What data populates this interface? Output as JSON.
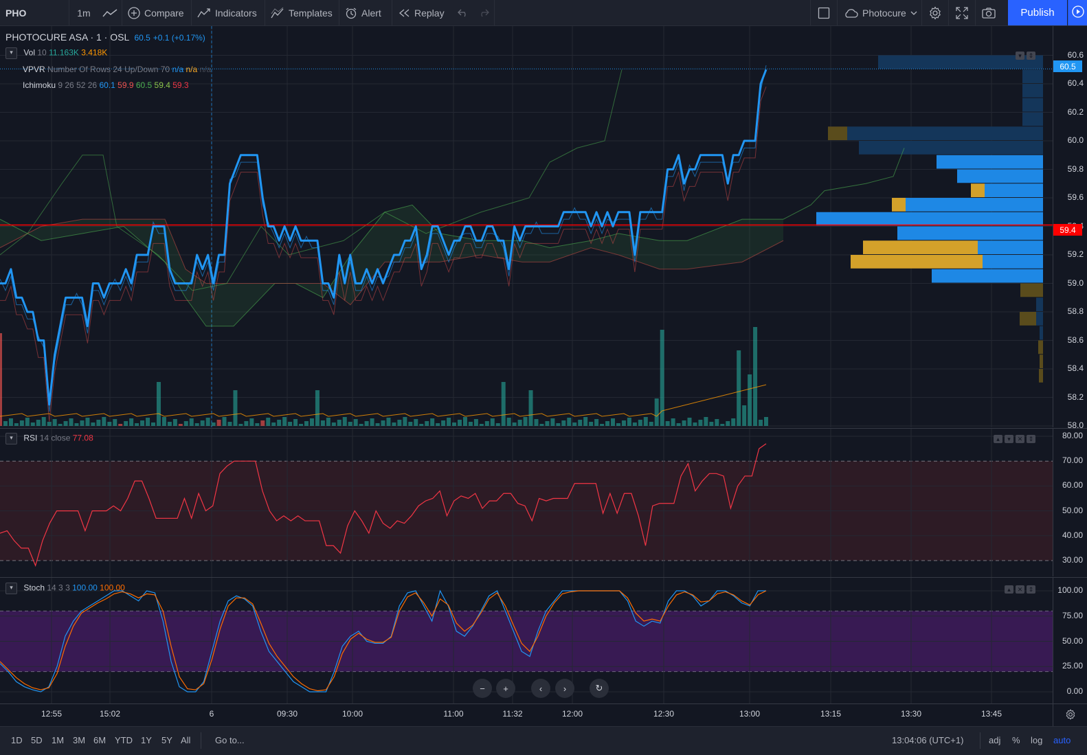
{
  "toolbar": {
    "symbol": "PHO",
    "interval": "1m",
    "compare": "Compare",
    "indicators": "Indicators",
    "templates": "Templates",
    "alert": "Alert",
    "replay": "Replay",
    "layout_name": "Photocure",
    "publish": "Publish"
  },
  "main_legend": {
    "name": "PHOTOCURE ASA · 1 · OSL",
    "last": "60.5",
    "change": "+0.1 (+0.17%)"
  },
  "vol_legend": {
    "name": "Vol",
    "params": "10",
    "v1": "11.163K",
    "v2": "3.418K"
  },
  "vpvr_legend": {
    "name": "VPVR",
    "params": "Number Of Rows 24 Up/Down 70",
    "v1": "n/a",
    "v2": "n/a",
    "v3": "n/a"
  },
  "ichimoku_legend": {
    "name": "Ichimoku",
    "params": "9 26 52 26",
    "v1": "60.1",
    "v2": "59.9",
    "v3": "60.5",
    "v4": "59.4",
    "v5": "59.3"
  },
  "rsi_legend": {
    "name": "RSI",
    "params": "14 close",
    "value": "77.08"
  },
  "stoch_legend": {
    "name": "Stoch",
    "params": "14 3 3",
    "k": "100.00",
    "d": "100.00"
  },
  "price_axis": [
    "60.6",
    "60.4",
    "60.2",
    "60.0",
    "59.8",
    "59.6",
    "59.4",
    "59.2",
    "59.0",
    "58.8",
    "58.6",
    "58.4",
    "58.2",
    "58.0"
  ],
  "price_tags": {
    "last": "60.5",
    "line": "59.4"
  },
  "rsi_axis": [
    "80.00",
    "70.00",
    "60.00",
    "50.00",
    "40.00",
    "30.00"
  ],
  "stoch_axis": [
    "100.00",
    "75.00",
    "50.00",
    "25.00",
    "0.00"
  ],
  "time_axis": [
    "12:55",
    "15:02",
    "6",
    "09:30",
    "10:00",
    "11:00",
    "11:32",
    "12:00",
    "12:30",
    "13:00",
    "13:15",
    "13:30",
    "13:45"
  ],
  "bottom": {
    "ranges": [
      "1D",
      "5D",
      "1M",
      "3M",
      "6M",
      "YTD",
      "1Y",
      "5Y",
      "All"
    ],
    "goto": "Go to...",
    "clock": "13:04:06 (UTC+1)",
    "adj": "adj",
    "percent": "%",
    "log": "log",
    "auto": "auto"
  },
  "colors": {
    "price_line": "#2196f3",
    "red_line": "#ff0000",
    "rsi": "#f23645",
    "stoch_k": "#2196f3",
    "stoch_d": "#ff6d00",
    "vol_up": "#26a69a",
    "vol_down": "#ef5350",
    "vpvr_up": "#1e88e5",
    "vpvr_down": "#f9a825",
    "accent": "#2962ff"
  },
  "chart_data": {
    "type": "line",
    "price_series": [
      59.0,
      59.0,
      59.1,
      58.9,
      58.9,
      58.8,
      58.8,
      58.6,
      58.6,
      58.15,
      58.5,
      58.7,
      58.9,
      58.9,
      58.9,
      58.9,
      58.7,
      59.0,
      59.0,
      58.9,
      59.0,
      59.0,
      59.0,
      59.1,
      59.0,
      59.2,
      59.2,
      59.2,
      59.4,
      59.4,
      59.4,
      59.1,
      59.0,
      59.0,
      59.0,
      59.0,
      59.2,
      59.1,
      59.2,
      59.0,
      59.2,
      59.2,
      59.7,
      59.8,
      59.9,
      59.9,
      59.9,
      59.9,
      59.6,
      59.4,
      59.4,
      59.3,
      59.4,
      59.3,
      59.4,
      59.3,
      59.3,
      59.3,
      59.3,
      59.0,
      59.0,
      58.9,
      59.2,
      59.0,
      59.2,
      59.0,
      59.0,
      59.1,
      59.0,
      59.1,
      59.0,
      59.1,
      59.2,
      59.2,
      59.3,
      59.3,
      59.4,
      59.1,
      59.2,
      59.4,
      59.4,
      59.3,
      59.2,
      59.3,
      59.3,
      59.4,
      59.4,
      59.3,
      59.3,
      59.4,
      59.4,
      59.3,
      59.3,
      59.1,
      59.4,
      59.3,
      59.4,
      59.4,
      59.4,
      59.4,
      59.4,
      59.4,
      59.4,
      59.5,
      59.5,
      59.5,
      59.5,
      59.5,
      59.4,
      59.5,
      59.4,
      59.5,
      59.4,
      59.5,
      59.5,
      59.5,
      59.2,
      59.5,
      59.5,
      59.5,
      59.5,
      59.5,
      59.8,
      59.8,
      59.9,
      59.7,
      59.8,
      59.8,
      59.9,
      59.9,
      59.9,
      59.9,
      59.9,
      59.7,
      59.9,
      59.9,
      60.0,
      60.0,
      60.0,
      60.4,
      60.5
    ],
    "rsi_series": [
      41,
      42,
      38,
      35,
      35,
      28,
      38,
      45,
      50,
      50,
      50,
      50,
      42,
      50,
      50,
      50,
      52,
      50,
      55,
      62,
      62,
      55,
      47,
      47,
      47,
      47,
      55,
      47,
      57,
      50,
      52,
      65,
      68,
      70,
      70,
      70,
      70,
      58,
      50,
      46,
      48,
      46,
      48,
      46,
      46,
      46,
      36,
      36,
      33,
      44,
      50,
      46,
      41,
      50,
      45,
      43,
      46,
      45,
      48,
      52,
      54,
      55,
      58,
      48,
      54,
      56,
      55,
      57,
      51,
      54,
      54,
      57,
      57,
      53,
      52,
      46,
      55,
      54,
      55,
      55,
      55,
      61,
      61,
      61,
      61,
      49,
      57,
      49,
      57,
      57,
      48,
      36,
      52,
      53,
      53,
      53,
      64,
      69,
      58,
      62,
      65,
      65,
      64,
      51,
      60,
      64,
      64,
      75,
      77
    ],
    "stoch_k": [
      28,
      20,
      10,
      5,
      2,
      0,
      5,
      25,
      55,
      70,
      80,
      85,
      90,
      95,
      100,
      100,
      95,
      90,
      100,
      98,
      70,
      30,
      5,
      0,
      0,
      10,
      40,
      70,
      90,
      95,
      92,
      85,
      60,
      40,
      30,
      20,
      10,
      5,
      0,
      0,
      0,
      20,
      45,
      55,
      60,
      50,
      48,
      48,
      55,
      85,
      98,
      100,
      85,
      70,
      100,
      85,
      60,
      55,
      65,
      80,
      95,
      100,
      80,
      60,
      40,
      35,
      60,
      80,
      90,
      100,
      100,
      100,
      100,
      100,
      100,
      100,
      100,
      90,
      70,
      65,
      70,
      68,
      90,
      100,
      100,
      95,
      85,
      90,
      100,
      100,
      95,
      88,
      85,
      100,
      100
    ],
    "stoch_d": [
      30,
      22,
      14,
      8,
      4,
      2,
      4,
      18,
      45,
      65,
      78,
      83,
      88,
      92,
      97,
      99,
      97,
      93,
      97,
      96,
      80,
      45,
      15,
      3,
      2,
      8,
      32,
      62,
      85,
      93,
      93,
      87,
      68,
      48,
      35,
      25,
      15,
      8,
      3,
      1,
      2,
      15,
      38,
      52,
      58,
      52,
      49,
      49,
      54,
      80,
      94,
      98,
      88,
      75,
      92,
      86,
      68,
      60,
      66,
      78,
      92,
      98,
      85,
      66,
      48,
      40,
      55,
      75,
      88,
      97,
      99,
      100,
      100,
      100,
      100,
      100,
      100,
      93,
      78,
      70,
      72,
      70,
      85,
      96,
      99,
      96,
      89,
      90,
      97,
      99,
      96,
      90,
      86,
      96,
      100
    ]
  }
}
